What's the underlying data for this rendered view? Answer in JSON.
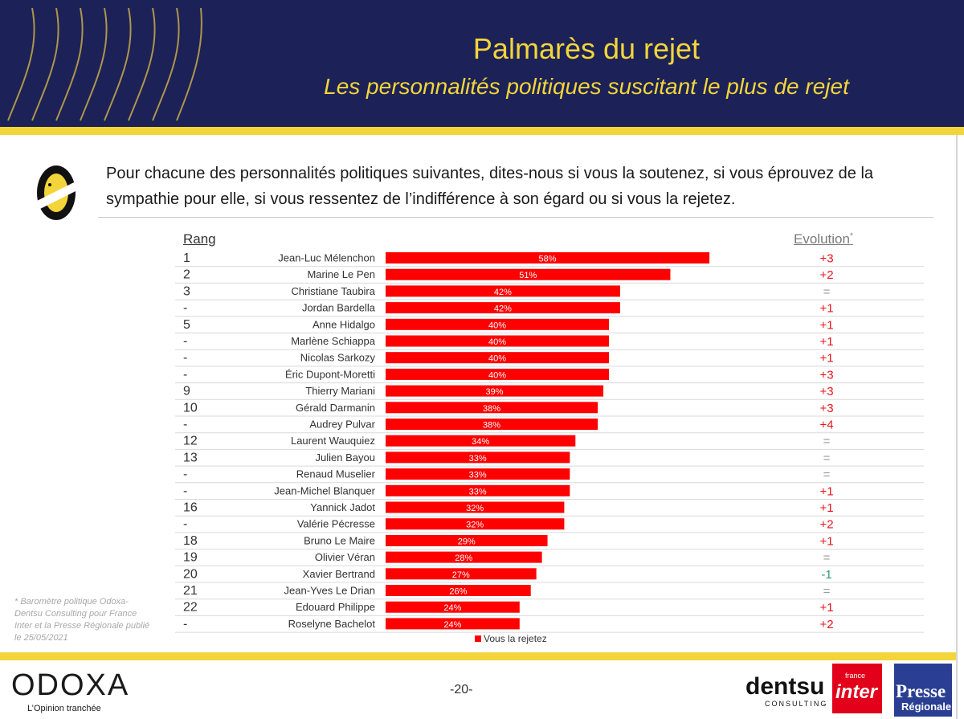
{
  "header": {
    "title": "Palmarès du rejet",
    "subtitle": "Les personnalités politiques suscitant le plus de rejet"
  },
  "question": "Pour chacune des personnalités politiques suivantes, dites-nous si vous la soutenez, si vous éprouvez de la sympathie pour elle, si vous ressentez de l’indifférence à son égard ou si vous la rejetez.",
  "columns": {
    "rank": "Rang",
    "evolution": "Evolution",
    "evolution_mark": "*"
  },
  "footnote": "* Baromètre politique Odoxa-Dentsu Consulting pour France Inter et la Presse Régionale publié le 25/05/2021",
  "footer": {
    "page_number": "-20-",
    "brand": "ODOXA",
    "brand_tagline": "L’Opinion tranchée",
    "partner1": "dentsu",
    "partner1_sub": "CONSULTING",
    "partner2_small": "france",
    "partner2": "inter",
    "partner3": "Presse",
    "partner3_sub": "Régionale"
  },
  "colors": {
    "navy": "#1c2257",
    "yellow": "#f3d53a",
    "bar": "#ff0000",
    "positive_evolution": "#e8141c",
    "negative_evolution": "#2e9e6f",
    "neutral_evolution": "#9a9a9a"
  },
  "chart_data": {
    "type": "bar",
    "orientation": "horizontal",
    "legend": "Vous la rejetez",
    "legend_position": "bottom",
    "value_suffix": "%",
    "xlim": [
      0,
      100
    ],
    "rows": [
      {
        "rank": "1",
        "name": "Jean-Luc Mélenchon",
        "value": 58,
        "label": "58%",
        "evolution": "+3"
      },
      {
        "rank": "2",
        "name": "Marine Le Pen",
        "value": 51,
        "label": "51%",
        "evolution": "+2"
      },
      {
        "rank": "3",
        "name": "Christiane Taubira",
        "value": 42,
        "label": "42%",
        "evolution": "="
      },
      {
        "rank": "-",
        "name": "Jordan Bardella",
        "value": 42,
        "label": "42%",
        "evolution": "+1"
      },
      {
        "rank": "5",
        "name": "Anne Hidalgo",
        "value": 40,
        "label": "40%",
        "evolution": "+1"
      },
      {
        "rank": "-",
        "name": "Marlène Schiappa",
        "value": 40,
        "label": "40%",
        "evolution": "+1"
      },
      {
        "rank": "-",
        "name": "Nicolas Sarkozy",
        "value": 40,
        "label": "40%",
        "evolution": "+1"
      },
      {
        "rank": "-",
        "name": "Éric Dupont-Moretti",
        "value": 40,
        "label": "40%",
        "evolution": "+3"
      },
      {
        "rank": "9",
        "name": "Thierry Mariani",
        "value": 39,
        "label": "39%",
        "evolution": "+3"
      },
      {
        "rank": "10",
        "name": "Gérald Darmanin",
        "value": 38,
        "label": "38%",
        "evolution": "+3"
      },
      {
        "rank": "-",
        "name": "Audrey Pulvar",
        "value": 38,
        "label": "38%",
        "evolution": "+4"
      },
      {
        "rank": "12",
        "name": "Laurent Wauquiez",
        "value": 34,
        "label": "34%",
        "evolution": "="
      },
      {
        "rank": "13",
        "name": "Julien Bayou",
        "value": 33,
        "label": "33%",
        "evolution": "="
      },
      {
        "rank": "-",
        "name": "Renaud Muselier",
        "value": 33,
        "label": "33%",
        "evolution": "="
      },
      {
        "rank": "-",
        "name": "Jean-Michel Blanquer",
        "value": 33,
        "label": "33%",
        "evolution": "+1"
      },
      {
        "rank": "16",
        "name": "Yannick Jadot",
        "value": 32,
        "label": "32%",
        "evolution": "+1"
      },
      {
        "rank": "-",
        "name": "Valérie Pécresse",
        "value": 32,
        "label": "32%",
        "evolution": "+2"
      },
      {
        "rank": "18",
        "name": "Bruno Le Maire",
        "value": 29,
        "label": "29%",
        "evolution": "+1"
      },
      {
        "rank": "19",
        "name": "Olivier Véran",
        "value": 28,
        "label": "28%",
        "evolution": "="
      },
      {
        "rank": "20",
        "name": "Xavier Bertrand",
        "value": 27,
        "label": "27%",
        "evolution": "-1"
      },
      {
        "rank": "21",
        "name": "Jean-Yves Le Drian",
        "value": 26,
        "label": "26%",
        "evolution": "="
      },
      {
        "rank": "22",
        "name": "Edouard Philippe",
        "value": 24,
        "label": "24%",
        "evolution": "+1"
      },
      {
        "rank": "-",
        "name": "Roselyne Bachelot",
        "value": 24,
        "label": "24%",
        "evolution": "+2"
      }
    ]
  }
}
